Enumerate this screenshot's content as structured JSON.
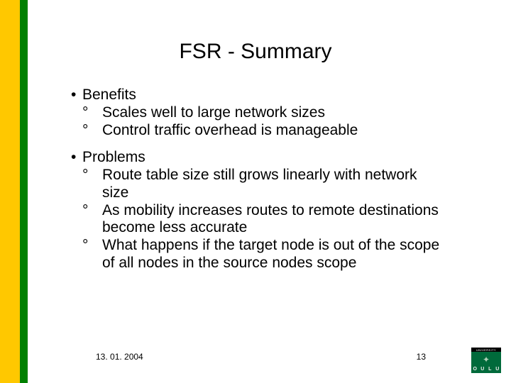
{
  "colors": {
    "stripe_yellow": "#ffc800",
    "stripe_green": "#008000",
    "logo_green": "#006a3b",
    "text": "#000000",
    "bg": "#ffffff"
  },
  "title": "FSR - Summary",
  "bullets": {
    "b1": {
      "label": "Benefits",
      "s1": "Scales well to large network sizes",
      "s2": "Control traffic overhead is manageable"
    },
    "b2": {
      "label": "Problems",
      "s1": "Route table size still grows linearly with network size",
      "s2": "As mobility increases routes to remote destinations become less accurate",
      "s3": "What happens if the target node is out of the scope of all nodes in the source nodes scope"
    }
  },
  "footer": {
    "date": "13. 01. 2004",
    "page": "13"
  },
  "logo": {
    "top": "UNIVERSITY",
    "c1": "O",
    "c2": "U",
    "c3": "L",
    "c4": "U"
  }
}
